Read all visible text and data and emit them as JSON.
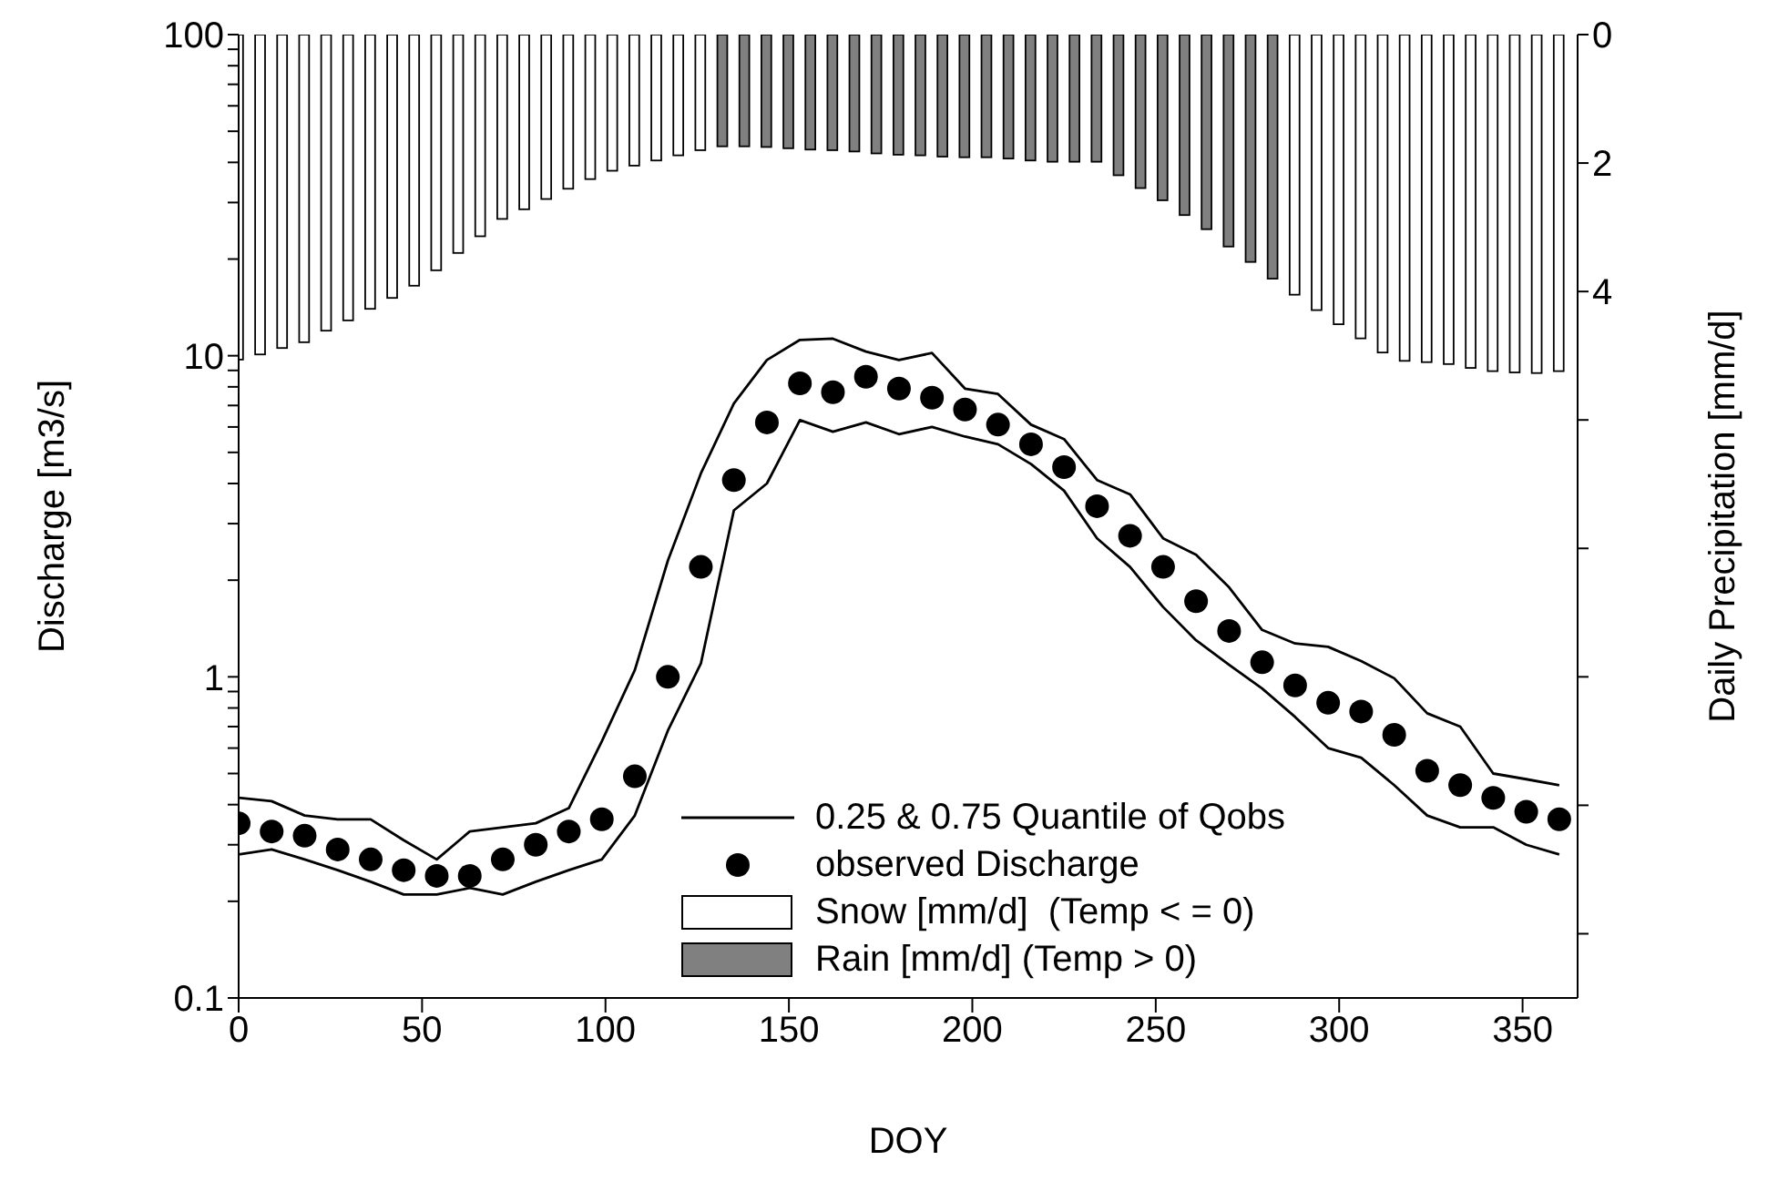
{
  "chart_data": {
    "type": "line",
    "xlabel": "DOY",
    "ylabel": "Discharge [m3/s]",
    "y2label": "Daily Precipitation [mm/d]",
    "x": [
      0,
      9,
      18,
      27,
      36,
      45,
      54,
      63,
      72,
      81,
      90,
      99,
      108,
      117,
      126,
      135,
      144,
      153,
      162,
      171,
      180,
      189,
      198,
      207,
      216,
      225,
      234,
      243,
      252,
      261,
      270,
      279,
      288,
      297,
      306,
      315,
      324,
      333,
      342,
      351,
      360
    ],
    "series": [
      {
        "name": "0.25 & 0.75 Quantile of Qobs",
        "color": "#000000",
        "values": [
          0.42,
          0.41,
          0.37,
          0.36,
          0.36,
          0.31,
          0.27,
          0.33,
          0.34,
          0.35,
          0.39,
          0.63,
          1.05,
          2.3,
          4.3,
          7.1,
          9.7,
          11.2,
          11.3,
          10.3,
          9.7,
          10.2,
          7.9,
          7.6,
          6.1,
          5.5,
          4.1,
          3.7,
          2.7,
          2.4,
          1.9,
          1.4,
          1.27,
          1.24,
          1.12,
          0.99,
          0.77,
          0.7,
          0.5,
          0.48,
          0.46
        ]
      },
      {
        "color": "#000000",
        "values": [
          0.28,
          0.29,
          0.27,
          0.25,
          0.23,
          0.21,
          0.21,
          0.22,
          0.21,
          0.23,
          0.25,
          0.27,
          0.37,
          0.68,
          1.1,
          3.3,
          4.0,
          6.3,
          5.8,
          6.2,
          5.7,
          6.0,
          5.6,
          5.3,
          4.6,
          3.8,
          2.7,
          2.2,
          1.65,
          1.3,
          1.09,
          0.92,
          0.75,
          0.6,
          0.56,
          0.46,
          0.37,
          0.34,
          0.34,
          0.3,
          0.28
        ]
      },
      {
        "name": "observed Discharge",
        "type": "scatter",
        "marker": "circle",
        "color": "#000000",
        "values": [
          0.35,
          0.33,
          0.32,
          0.29,
          0.27,
          0.25,
          0.24,
          0.24,
          0.27,
          0.3,
          0.33,
          0.36,
          0.49,
          1.0,
          2.2,
          4.1,
          6.2,
          8.2,
          7.7,
          8.6,
          7.9,
          7.4,
          6.8,
          6.1,
          5.3,
          4.5,
          3.4,
          2.75,
          2.2,
          1.72,
          1.39,
          1.11,
          0.94,
          0.83,
          0.78,
          0.66,
          0.51,
          0.46,
          0.42,
          0.38,
          0.36
        ]
      },
      {
        "name": "Snow [mm/d]  (Temp < = 0)",
        "type": "bar",
        "axis": "y2",
        "color": "#ffffff",
        "x": [
          0,
          6,
          12,
          18,
          24,
          30,
          36,
          42,
          48,
          54,
          60,
          66,
          72,
          78,
          84,
          90,
          96,
          102,
          108,
          114,
          120,
          126,
          132,
          138,
          144,
          150,
          156,
          162,
          168,
          174,
          180,
          186,
          192,
          198,
          204,
          210,
          216,
          222,
          228,
          234,
          240,
          246,
          252,
          258,
          264,
          270,
          276,
          282,
          288,
          294,
          300,
          306,
          312,
          318,
          324,
          330,
          336,
          342,
          348,
          354,
          360
        ],
        "values": [
          5.06,
          4.98,
          4.88,
          4.79,
          4.61,
          4.45,
          4.27,
          4.1,
          3.91,
          3.67,
          3.4,
          3.14,
          2.87,
          2.72,
          2.56,
          2.4,
          2.25,
          2.12,
          2.04,
          1.96,
          1.88,
          1.8,
          null,
          null,
          null,
          null,
          null,
          null,
          null,
          null,
          null,
          null,
          null,
          null,
          null,
          null,
          null,
          null,
          null,
          null,
          null,
          null,
          null,
          null,
          null,
          null,
          null,
          null,
          4.05,
          4.29,
          4.51,
          4.73,
          4.95,
          5.08,
          5.1,
          5.13,
          5.19,
          5.24,
          5.26,
          5.27,
          5.24
        ]
      },
      {
        "name": "Rain [mm/d] (Temp > 0)",
        "type": "bar",
        "axis": "y2",
        "color": "#808080",
        "x": [
          132,
          138,
          144,
          150,
          156,
          162,
          168,
          174,
          180,
          186,
          192,
          198,
          204,
          210,
          216,
          222,
          228,
          234,
          240,
          246,
          252,
          258,
          264,
          270,
          276,
          282
        ],
        "values": [
          1.74,
          1.74,
          1.75,
          1.77,
          1.79,
          1.8,
          1.82,
          1.85,
          1.87,
          1.88,
          1.9,
          1.91,
          1.91,
          1.93,
          1.96,
          1.98,
          1.98,
          1.98,
          2.19,
          2.39,
          2.58,
          2.81,
          3.03,
          3.3,
          3.54,
          3.8
        ]
      }
    ],
    "xlim": [
      0,
      365
    ],
    "xticks": [
      0,
      50,
      100,
      150,
      200,
      250,
      300,
      350
    ],
    "log": "y",
    "ylim": [
      0.1,
      100
    ],
    "yticks": [
      0.1,
      {
        "value": 0.2,
        "label": null
      },
      {
        "value": 0.3,
        "label": null
      },
      {
        "value": 0.4,
        "label": null
      },
      {
        "value": 0.5,
        "label": null
      },
      {
        "value": 0.6,
        "label": null
      },
      {
        "value": 0.7,
        "label": null
      },
      {
        "value": 0.8,
        "label": null
      },
      {
        "value": 0.9,
        "label": null
      },
      1,
      {
        "value": 2,
        "label": null
      },
      {
        "value": 3,
        "label": null
      },
      {
        "value": 4,
        "label": null
      },
      {
        "value": 5,
        "label": null
      },
      {
        "value": 6,
        "label": null
      },
      {
        "value": 7,
        "label": null
      },
      {
        "value": 8,
        "label": null
      },
      {
        "value": 9,
        "label": null
      },
      10,
      {
        "value": 20,
        "label": null
      },
      {
        "value": 30,
        "label": null
      },
      {
        "value": 40,
        "label": null
      },
      {
        "value": 50,
        "label": null
      },
      {
        "value": 60,
        "label": null
      },
      {
        "value": 70,
        "label": null
      },
      {
        "value": 80,
        "label": null
      },
      {
        "value": 90,
        "label": null
      },
      100
    ],
    "y2lim": [
      15,
      0
    ],
    "y2ticks": [
      0,
      2,
      4,
      {
        "value": 6,
        "label": null
      },
      {
        "value": 8,
        "label": null
      },
      {
        "value": 10,
        "label": null
      },
      {
        "value": 12,
        "label": null
      },
      {
        "value": 14,
        "label": null
      }
    ],
    "grid": false,
    "legend": "bottom right",
    "line_style": "solid"
  }
}
